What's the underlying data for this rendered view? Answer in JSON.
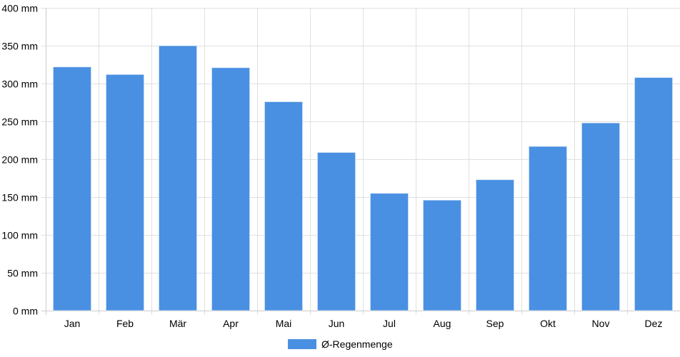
{
  "chart_data": {
    "type": "bar",
    "categories": [
      "Jan",
      "Feb",
      "Mär",
      "Apr",
      "Mai",
      "Jun",
      "Jul",
      "Aug",
      "Sep",
      "Okt",
      "Nov",
      "Dez"
    ],
    "series": [
      {
        "name": "Ø-Regenmenge",
        "color": "#4a90e2",
        "values": [
          322,
          312,
          350,
          321,
          276,
          209,
          155,
          146,
          173,
          217,
          248,
          308
        ]
      }
    ],
    "ylim": [
      0,
      400
    ],
    "yticks": [
      0,
      50,
      100,
      150,
      200,
      250,
      300,
      350,
      400
    ],
    "y_unit": "mm",
    "grid": true,
    "legend_position": "bottom-center"
  }
}
